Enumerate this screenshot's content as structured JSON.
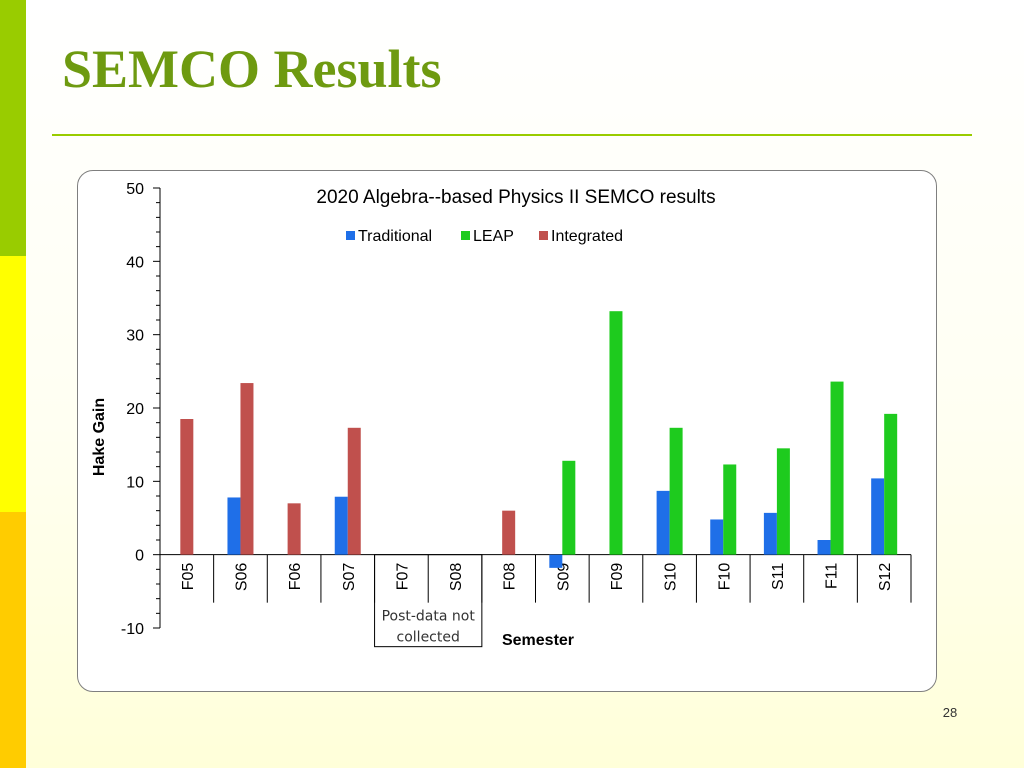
{
  "slide": {
    "title": "SEMCO Results",
    "page_number": "28"
  },
  "colors": {
    "accent_green": "#99cc00",
    "accent_yellow": "#ffff00",
    "accent_gold": "#ffcc00",
    "title_color": "#6e9a10"
  },
  "chart_data": {
    "type": "bar",
    "title": "2020 Algebra--based Physics II SEMCO results",
    "xlabel": "Semester",
    "ylabel": "Hake Gain",
    "ylim": [
      -10,
      50
    ],
    "yticks": [
      -10,
      0,
      10,
      20,
      30,
      40,
      50
    ],
    "grid": false,
    "legend_position": "top-center",
    "categories": [
      "F05",
      "S06",
      "F06",
      "S07",
      "F07",
      "S08",
      "F08",
      "S09",
      "F09",
      "S10",
      "F10",
      "S11",
      "F11",
      "S12"
    ],
    "series": [
      {
        "name": "Traditional",
        "color": "#1f6fe8",
        "values": [
          null,
          7.8,
          null,
          7.9,
          null,
          null,
          null,
          -1.8,
          null,
          8.7,
          4.8,
          5.7,
          2.0,
          10.4
        ]
      },
      {
        "name": "LEAP",
        "color": "#1ecb1e",
        "values": [
          null,
          null,
          null,
          null,
          null,
          null,
          null,
          12.8,
          33.2,
          17.3,
          12.3,
          14.5,
          23.6,
          19.2
        ]
      },
      {
        "name": "Integrated",
        "color": "#c0504d",
        "values": [
          18.5,
          23.4,
          7.0,
          17.3,
          null,
          null,
          6.0,
          null,
          null,
          null,
          null,
          null,
          null,
          null
        ]
      }
    ],
    "annotation": {
      "text_line1": "Post-data not",
      "text_line2": "collected",
      "categories": [
        "F07",
        "S08"
      ]
    }
  }
}
